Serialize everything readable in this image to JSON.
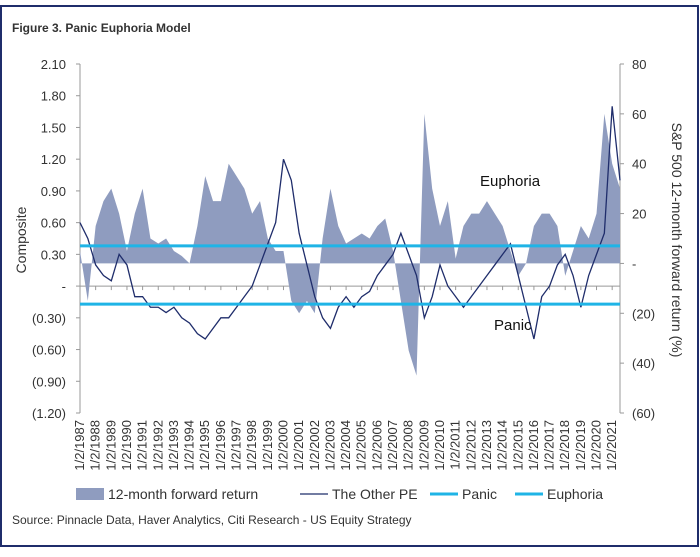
{
  "chart_data": {
    "type": "line-area",
    "title": "Figure 3. Panic Euphoria Model",
    "y_label": "Composite",
    "y2_label": "S&P 500 12-month forward return (%)",
    "source": "Source: Pinnacle Data, Haver Analytics, Citi Research - US Equity Strategy",
    "annotations": [
      "Euphoria",
      "Panic"
    ],
    "categories": [
      "1/2/1987",
      null,
      "1/2/1988",
      null,
      "1/2/1989",
      null,
      "1/2/1990",
      null,
      "1/2/1991",
      null,
      "1/2/1992",
      null,
      "1/2/1993",
      null,
      "1/2/1994",
      null,
      "1/2/1995",
      null,
      "1/2/1996",
      null,
      "1/2/1997",
      null,
      "1/2/1998",
      null,
      "1/2/1999",
      null,
      "1/2/2000",
      null,
      "1/2/2001",
      null,
      "1/2/2002",
      null,
      "1/2/2003",
      null,
      "1/2/2004",
      null,
      "1/2/2005",
      null,
      "1/2/2006",
      null,
      "1/2/2007",
      null,
      "1/2/2008",
      null,
      "1/2/2009",
      null,
      "1/2/2010",
      null,
      "1/2/2011",
      null,
      "1/2/2012",
      null,
      "1/2/2013",
      null,
      "1/2/2014",
      null,
      "1/2/2015",
      null,
      "1/2/2016",
      null,
      "1/2/2017",
      null,
      "1/2/2018",
      null,
      "1/2/2019",
      null,
      "1/2/2020",
      null,
      "1/2/2021",
      null
    ],
    "series": [
      {
        "name": "12-month forward return",
        "kind": "area",
        "axis": "y2",
        "color": "#8f9cbf",
        "values": [
          5,
          -15,
          15,
          25,
          30,
          20,
          5,
          20,
          30,
          10,
          8,
          10,
          5,
          3,
          0,
          15,
          35,
          25,
          25,
          40,
          35,
          30,
          20,
          25,
          10,
          5,
          5,
          -15,
          -20,
          -15,
          -20,
          10,
          30,
          15,
          8,
          10,
          12,
          10,
          15,
          18,
          5,
          -15,
          -35,
          -45,
          60,
          30,
          15,
          25,
          2,
          15,
          20,
          20,
          25,
          20,
          15,
          5,
          -5,
          0,
          15,
          20,
          20,
          15,
          -5,
          5,
          15,
          10,
          20,
          60,
          40,
          30
        ]
      },
      {
        "name": "The Other PE",
        "kind": "line",
        "color": "#1f2d6b",
        "values": [
          0.6,
          0.45,
          0.2,
          0.1,
          0.05,
          0.3,
          0.2,
          -0.1,
          -0.1,
          -0.2,
          -0.2,
          -0.25,
          -0.2,
          -0.3,
          -0.35,
          -0.45,
          -0.5,
          -0.4,
          -0.3,
          -0.3,
          -0.2,
          -0.1,
          0,
          0.2,
          0.4,
          0.6,
          1.2,
          1.0,
          0.5,
          0.2,
          -0.1,
          -0.3,
          -0.4,
          -0.2,
          -0.1,
          -0.2,
          -0.1,
          -0.05,
          0.1,
          0.2,
          0.3,
          0.5,
          0.3,
          0.1,
          -0.3,
          -0.1,
          0.2,
          0,
          -0.1,
          -0.2,
          -0.1,
          0,
          0.1,
          0.2,
          0.3,
          0.4,
          0.1,
          -0.2,
          -0.5,
          -0.1,
          0,
          0.2,
          0.3,
          0.1,
          -0.2,
          0.1,
          0.3,
          0.5,
          1.7,
          1.0
        ]
      },
      {
        "name": "Panic",
        "kind": "hline",
        "color": "#1fb4e6",
        "value": -0.17
      },
      {
        "name": "Euphoria",
        "kind": "hline",
        "color": "#1fb4e6",
        "value": 0.38
      }
    ],
    "ylim": [
      -1.2,
      2.1
    ],
    "yticks": [
      {
        "value": -1.2,
        "label": "(1.20)"
      },
      {
        "value": -0.9,
        "label": "(0.90)"
      },
      {
        "value": -0.6,
        "label": "(0.60)"
      },
      {
        "value": -0.3,
        "label": "(0.30)"
      },
      {
        "value": 0,
        "label": "-"
      },
      {
        "value": 0.3,
        "label": "0.30"
      },
      {
        "value": 0.6,
        "label": "0.60"
      },
      {
        "value": 0.9,
        "label": "0.90"
      },
      {
        "value": 1.2,
        "label": "1.20"
      },
      {
        "value": 1.5,
        "label": "1.50"
      },
      {
        "value": 1.8,
        "label": "1.80"
      },
      {
        "value": 2.1,
        "label": "2.10"
      }
    ],
    "y2lim": [
      -60,
      80
    ],
    "y2ticks": [
      {
        "value": -60,
        "label": "(60)"
      },
      {
        "value": -40,
        "label": "(40)"
      },
      {
        "value": -20,
        "label": "(20)"
      },
      {
        "value": 0,
        "label": "-"
      },
      20,
      40,
      60,
      80
    ],
    "grid": false
  }
}
